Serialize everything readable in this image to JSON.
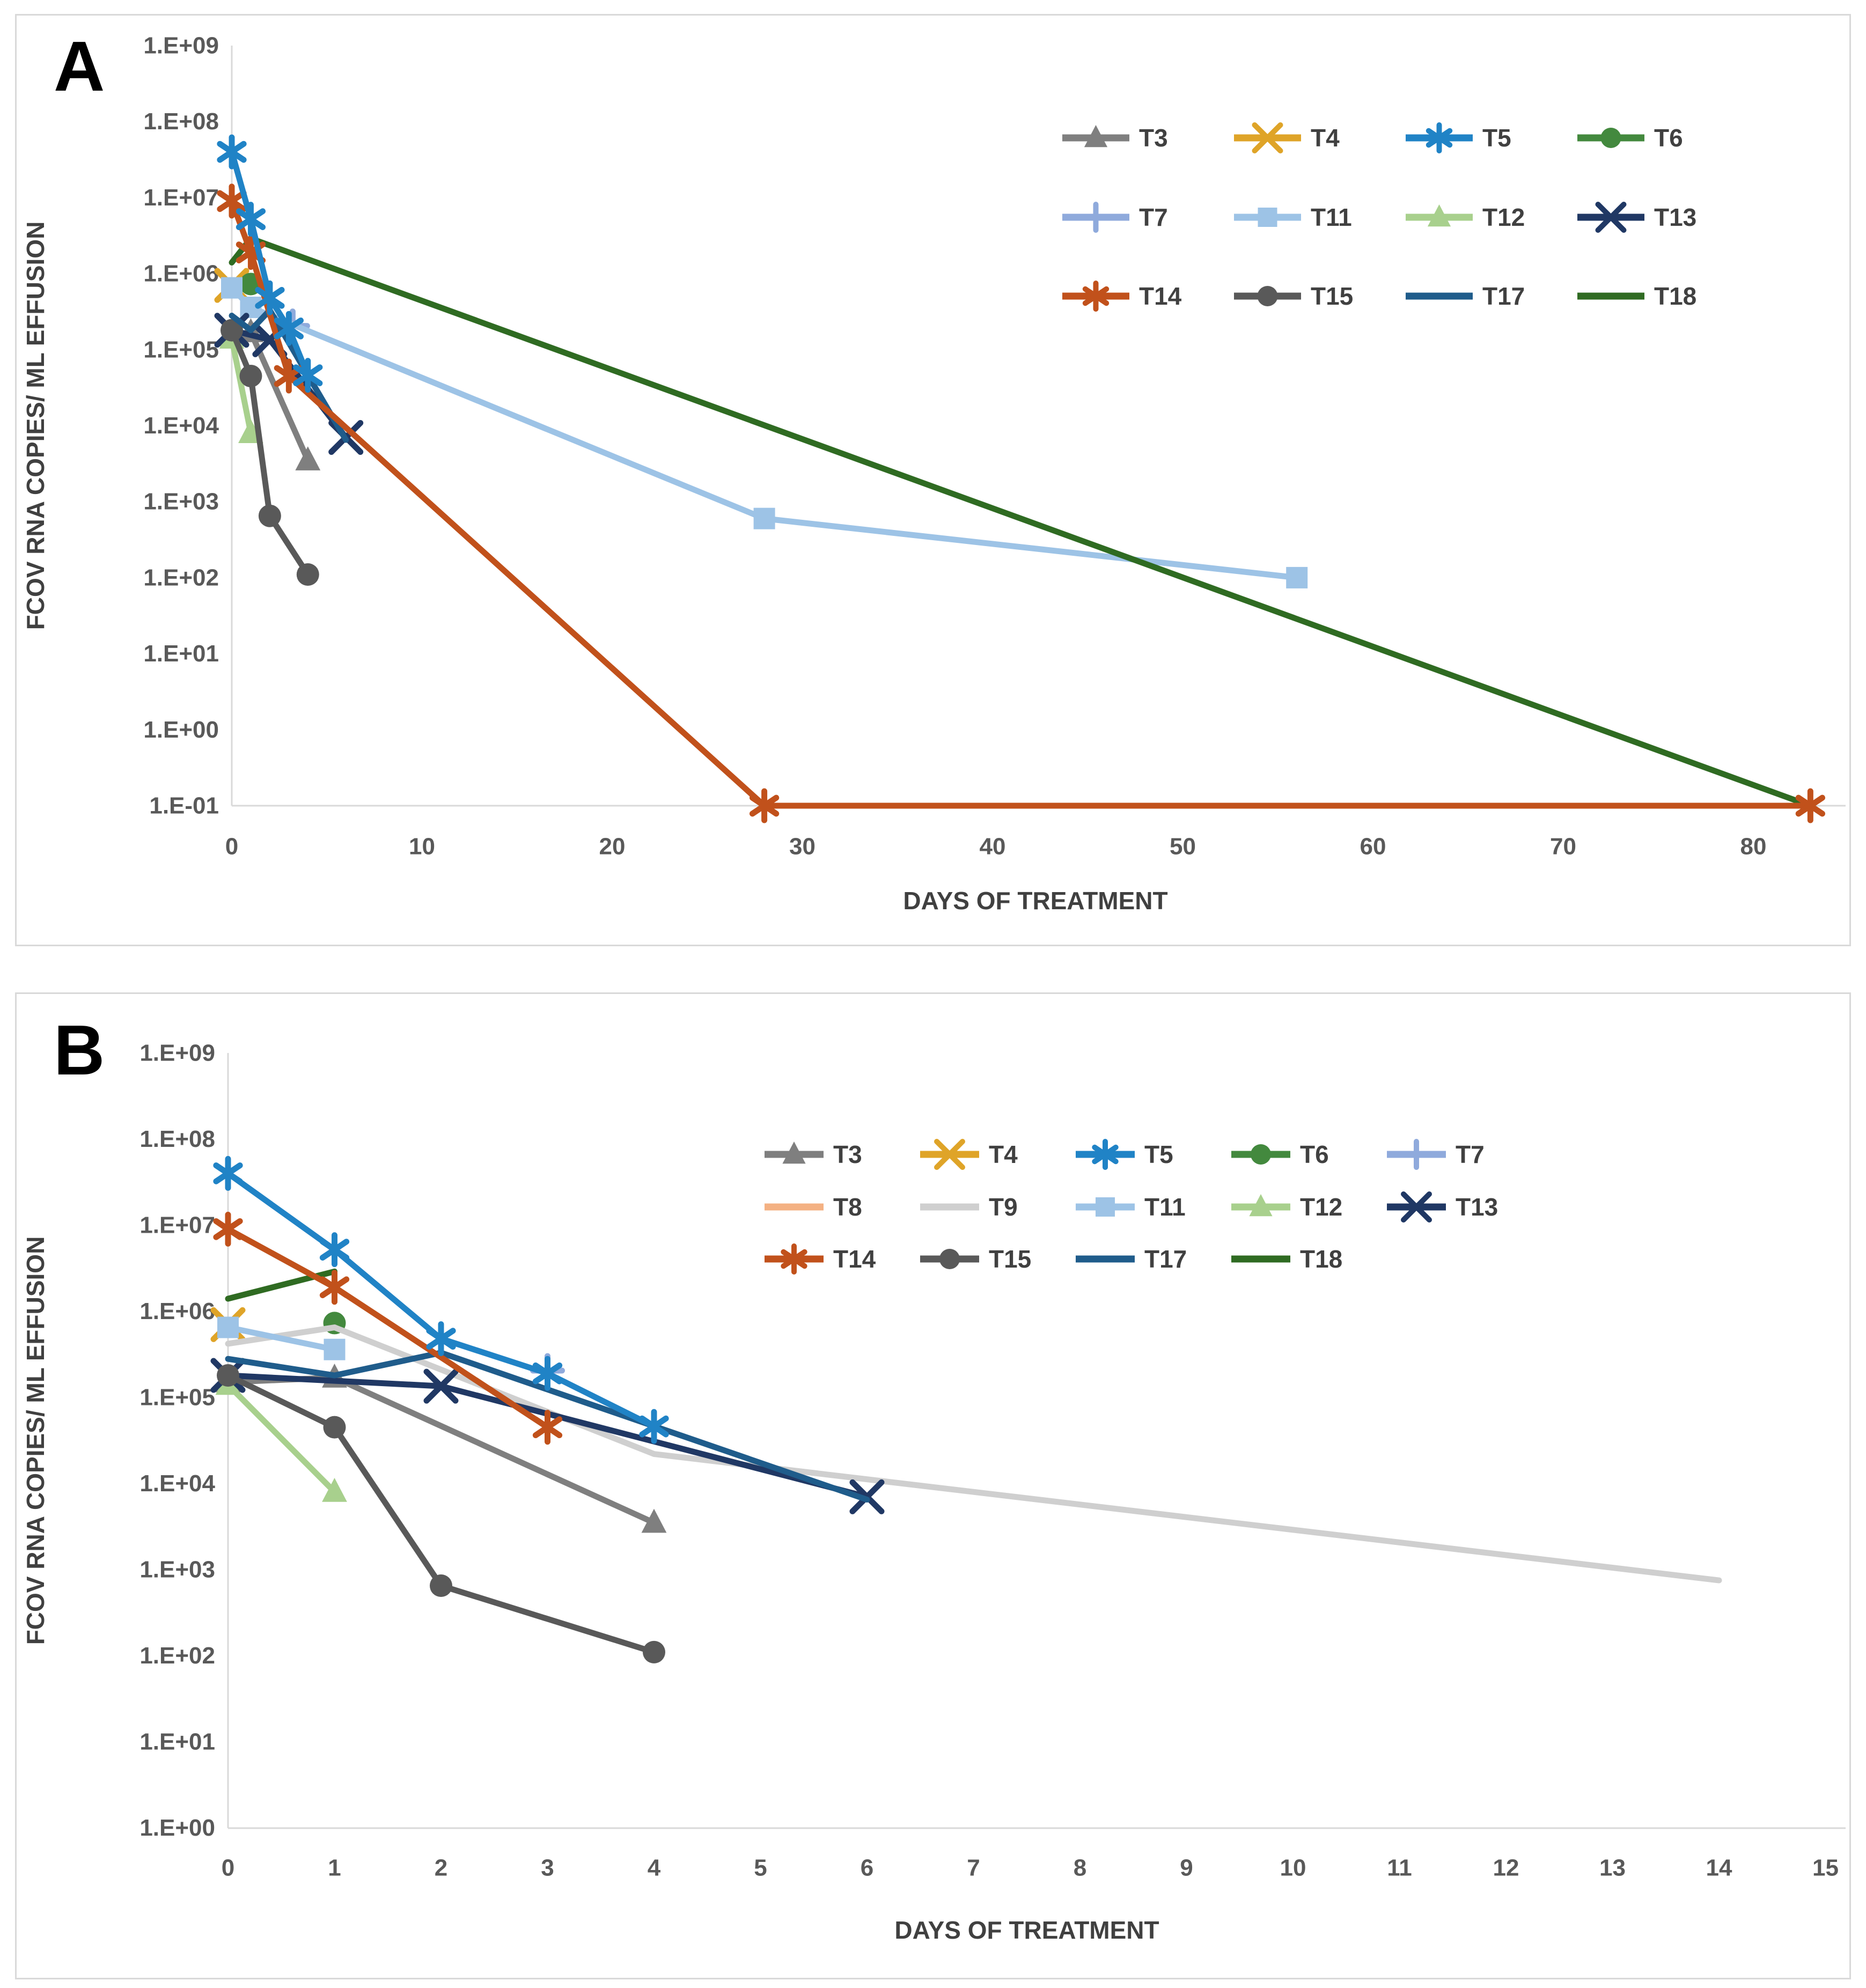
{
  "figure": {
    "panel_letters": [
      "A",
      "B"
    ],
    "background": "#ffffff",
    "axis_text_color": "#595959",
    "title_text_color": "#404040",
    "axis_line_color": "#d9d9d9"
  },
  "chart_data": [
    {
      "type": "line",
      "panel_label": "A",
      "title": "",
      "xlabel": "DAYS OF TREATMENT",
      "ylabel": "FCOV RNA COPIES/ ML EFFUSION",
      "x_ticks": [
        0,
        10,
        20,
        30,
        40,
        50,
        60,
        70,
        80
      ],
      "xlim": [
        0,
        84.5
      ],
      "y_tick_labels": [
        "1.E+09",
        "1.E+08",
        "1.E+07",
        "1.E+06",
        "1.E+05",
        "1.E+04",
        "1.E+03",
        "1.E+02",
        "1.E+01",
        "1.E+00",
        "1.E-01"
      ],
      "y_exp_max": 9,
      "y_exp_min": -1,
      "grid": false,
      "legend_position": "inside-top-right",
      "legend_rows": [
        [
          "T3",
          "T4",
          "T5",
          "T6"
        ],
        [
          "T7",
          "T11",
          "T12",
          "T13"
        ],
        [
          "T14",
          "T15",
          "T17",
          "T18"
        ]
      ],
      "draw_order": [
        "T3",
        "T4",
        "T6",
        "T7",
        "T11",
        "T12",
        "T13",
        "T15",
        "T17",
        "T18",
        "T14",
        "T5"
      ],
      "series": [
        {
          "name": "T3",
          "color": "#7f7f7f",
          "marker": "triangle",
          "points": [
            [
              0,
              150000
            ],
            [
              1,
              170000
            ],
            [
              4,
              3500
            ]
          ]
        },
        {
          "name": "T4",
          "color": "#dfa428",
          "marker": "x",
          "points": [
            [
              0,
              700000
            ]
          ]
        },
        {
          "name": "T5",
          "color": "#2083c6",
          "marker": "asterisk",
          "points": [
            [
              0,
              40000000
            ],
            [
              1,
              5200000
            ],
            [
              2,
              480000
            ],
            [
              3,
              190000
            ],
            [
              4,
              46000
            ]
          ]
        },
        {
          "name": "T6",
          "color": "#43893e",
          "marker": "circle",
          "points": [
            [
              1,
              730000
            ]
          ]
        },
        {
          "name": "T7",
          "color": "#8faadc",
          "marker": "plus",
          "points": [
            [
              3.2,
              205000
            ]
          ]
        },
        {
          "name": "T11",
          "color": "#9dc3e6",
          "marker": "square",
          "points": [
            [
              0,
              650000
            ],
            [
              1,
              360000
            ],
            [
              28,
              600
            ],
            [
              56,
              100
            ]
          ]
        },
        {
          "name": "T12",
          "color": "#a8d08d",
          "marker": "triangle",
          "points": [
            [
              0,
              140000
            ],
            [
              1,
              8000
            ]
          ]
        },
        {
          "name": "T13",
          "color": "#203864",
          "marker": "x",
          "points": [
            [
              0,
              180000
            ],
            [
              2,
              135000
            ],
            [
              6,
              7000
            ]
          ]
        },
        {
          "name": "T14",
          "color": "#c1511b",
          "marker": "asterisk",
          "points": [
            [
              0,
              9000000
            ],
            [
              1,
              1900000
            ],
            [
              3,
              45000
            ],
            [
              28,
              0.1
            ],
            [
              83,
              0.1
            ]
          ]
        },
        {
          "name": "T15",
          "color": "#595959",
          "marker": "circle",
          "points": [
            [
              0,
              180000
            ],
            [
              1,
              45000
            ],
            [
              2,
              650
            ],
            [
              4,
              110
            ]
          ]
        },
        {
          "name": "T17",
          "color": "#1f5c8b",
          "marker": "none",
          "points": [
            [
              0,
              280000
            ],
            [
              1,
              180000
            ],
            [
              2,
              330000
            ],
            [
              6,
              6500
            ]
          ]
        },
        {
          "name": "T18",
          "color": "#2f6b22",
          "marker": "none",
          "points": [
            [
              0,
              1400000
            ],
            [
              1,
              2900000
            ],
            [
              83,
              0.1
            ]
          ]
        }
      ]
    },
    {
      "type": "line",
      "panel_label": "B",
      "title": "",
      "xlabel": "DAYS OF TREATMENT",
      "ylabel": "FCOV RNA COPIES/ ML EFFUSION",
      "x_ticks": [
        0,
        1,
        2,
        3,
        4,
        5,
        6,
        7,
        8,
        9,
        10,
        11,
        12,
        13,
        14,
        15
      ],
      "xlim": [
        0,
        15.25
      ],
      "y_tick_labels": [
        "1.E+09",
        "1.E+08",
        "1.E+07",
        "1.E+06",
        "1.E+05",
        "1.E+04",
        "1.E+03",
        "1.E+02",
        "1.E+01",
        "1.E+00"
      ],
      "y_exp_max": 9,
      "y_exp_min": 0,
      "grid": false,
      "legend_position": "inside-top-center",
      "legend_rows": [
        [
          "T3",
          "T4",
          "T5",
          "T6",
          "T7"
        ],
        [
          "T8",
          "T9",
          "T11",
          "T12",
          "T13"
        ],
        [
          "T14",
          "T15",
          "T17",
          "T18"
        ]
      ],
      "draw_order": [
        "T3",
        "T4",
        "T6",
        "T7",
        "T8",
        "T9",
        "T11",
        "T12",
        "T13",
        "T15",
        "T17",
        "T18",
        "T14",
        "T5"
      ],
      "series": [
        {
          "name": "T3",
          "color": "#7f7f7f",
          "marker": "triangle",
          "points": [
            [
              0,
              150000
            ],
            [
              1,
              170000
            ],
            [
              4,
              3500
            ]
          ]
        },
        {
          "name": "T4",
          "color": "#dfa428",
          "marker": "x",
          "points": [
            [
              0,
              700000
            ]
          ]
        },
        {
          "name": "T5",
          "color": "#2083c6",
          "marker": "asterisk",
          "points": [
            [
              0,
              40000000
            ],
            [
              1,
              5200000
            ],
            [
              2,
              480000
            ],
            [
              3,
              190000
            ],
            [
              4,
              46000
            ]
          ]
        },
        {
          "name": "T6",
          "color": "#43893e",
          "marker": "circle",
          "points": [
            [
              1,
              730000
            ]
          ]
        },
        {
          "name": "T7",
          "color": "#8faadc",
          "marker": "plus",
          "points": [
            [
              3,
              205000
            ]
          ]
        },
        {
          "name": "T8",
          "color": "#f4b183",
          "marker": "none",
          "points": [
            [
              0,
              9500000
            ]
          ]
        },
        {
          "name": "T9",
          "color": "#cfcfcf",
          "marker": "none",
          "points": [
            [
              0,
              420000
            ],
            [
              1,
              650000
            ],
            [
              4,
              22000
            ],
            [
              14,
              750
            ]
          ]
        },
        {
          "name": "T11",
          "color": "#9dc3e6",
          "marker": "square",
          "points": [
            [
              0,
              650000
            ],
            [
              1,
              360000
            ]
          ]
        },
        {
          "name": "T12",
          "color": "#a8d08d",
          "marker": "triangle",
          "points": [
            [
              0,
              140000
            ],
            [
              1,
              8000
            ]
          ]
        },
        {
          "name": "T13",
          "color": "#203864",
          "marker": "x",
          "points": [
            [
              0,
              180000
            ],
            [
              2,
              135000
            ],
            [
              6,
              7000
            ]
          ]
        },
        {
          "name": "T14",
          "color": "#c1511b",
          "marker": "asterisk",
          "points": [
            [
              0,
              9000000
            ],
            [
              1,
              1900000
            ],
            [
              3,
              45000
            ]
          ]
        },
        {
          "name": "T15",
          "color": "#595959",
          "marker": "circle",
          "points": [
            [
              0,
              180000
            ],
            [
              1,
              45000
            ],
            [
              2,
              650
            ],
            [
              4,
              110
            ]
          ]
        },
        {
          "name": "T17",
          "color": "#1f5c8b",
          "marker": "none",
          "points": [
            [
              0,
              280000
            ],
            [
              1,
              180000
            ],
            [
              2,
              330000
            ],
            [
              6,
              6500
            ]
          ]
        },
        {
          "name": "T18",
          "color": "#2f6b22",
          "marker": "none",
          "points": [
            [
              0,
              1400000
            ],
            [
              1,
              2900000
            ]
          ]
        }
      ]
    }
  ]
}
